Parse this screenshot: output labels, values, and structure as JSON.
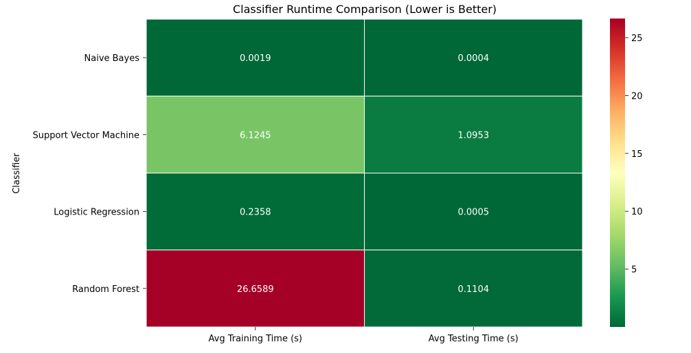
{
  "chart_data": {
    "type": "heatmap",
    "title": "Classifier Runtime Comparison (Lower is Better)",
    "xlabel": "",
    "ylabel": "Classifier",
    "columns": [
      "Avg Training Time (s)",
      "Avg Testing Time (s)"
    ],
    "rows": [
      "Naive Bayes",
      "Support Vector Machine",
      "Logistic Regression",
      "Random Forest"
    ],
    "values": [
      [
        0.0019,
        0.0004
      ],
      [
        6.1245,
        1.0953
      ],
      [
        0.2358,
        0.0005
      ],
      [
        26.6589,
        0.1104
      ]
    ],
    "cell_labels": [
      [
        "0.0019",
        "0.0004"
      ],
      [
        "6.1245",
        "1.0953"
      ],
      [
        "0.2358",
        "0.0005"
      ],
      [
        "26.6589",
        "0.1104"
      ]
    ],
    "colorbar": {
      "colormap": "RdYlGn_r",
      "vmin": 0.0004,
      "vmax": 26.6589,
      "ticks": [
        5,
        10,
        15,
        20,
        25
      ],
      "tick_labels": [
        "5",
        "10",
        "15",
        "20",
        "25"
      ]
    },
    "grid": false,
    "cell_border_color": "#ffffff"
  }
}
